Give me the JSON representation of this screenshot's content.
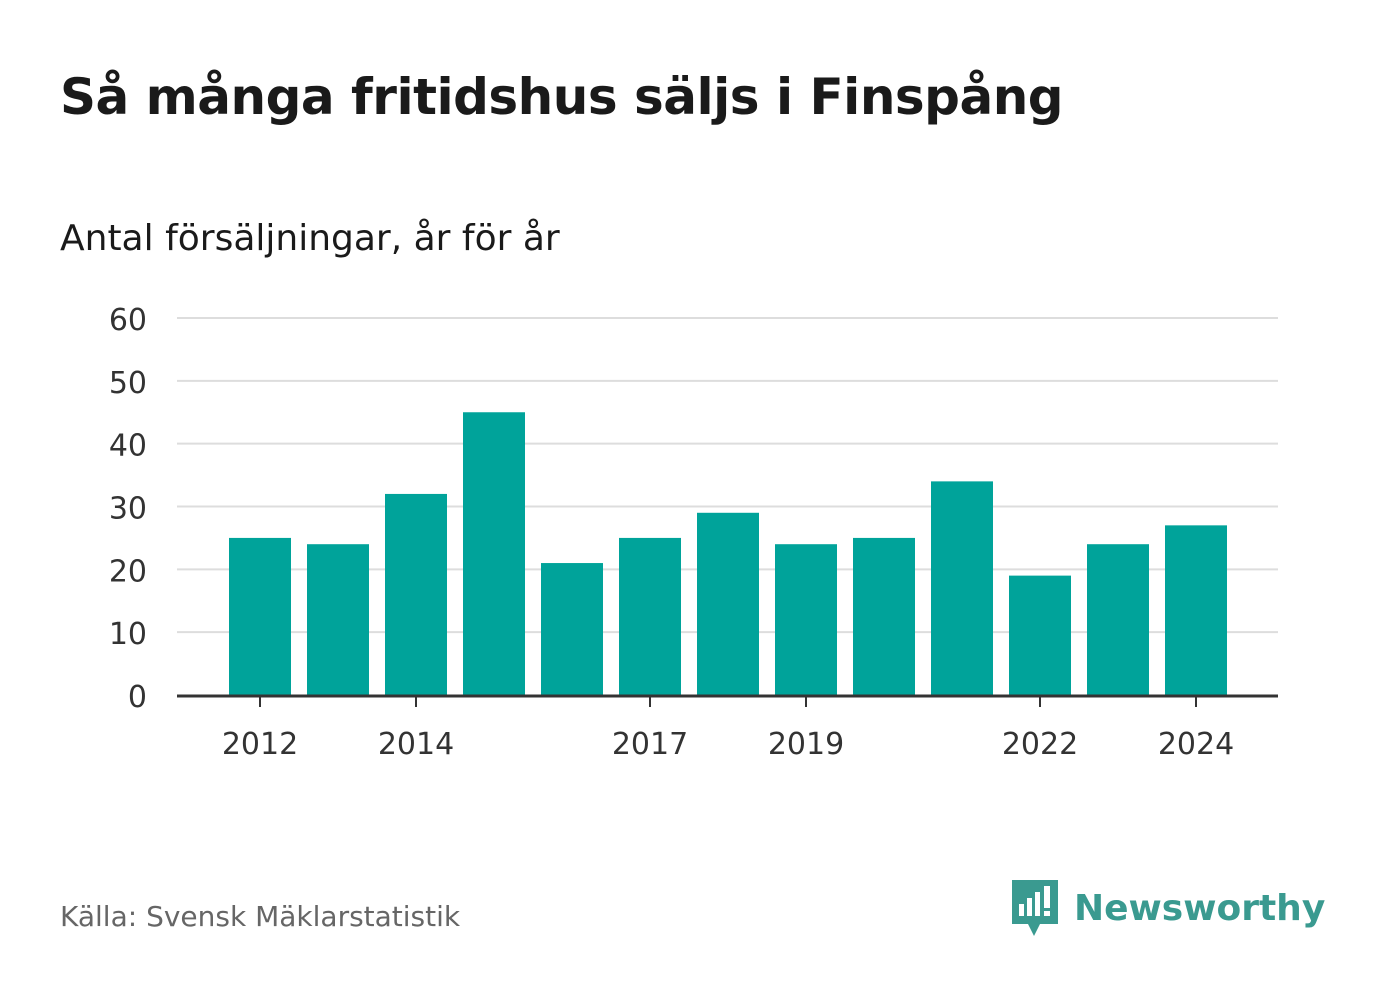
{
  "title": "Så många fritidshus säljs i Finspång",
  "subtitle": "Antal försäljningar, år för år",
  "source": "Källa: Svensk Mäklarstatistik",
  "brand": {
    "name": "Newsworthy",
    "icon": "newsworthy-logo-icon",
    "color": "#3a9a90"
  },
  "chart_data": {
    "type": "bar",
    "categories": [
      "2012",
      "2013",
      "2014",
      "2015",
      "2016",
      "2017",
      "2018",
      "2019",
      "2020",
      "2021",
      "2022",
      "2023",
      "2024"
    ],
    "values": [
      25,
      24,
      32,
      45,
      21,
      25,
      29,
      24,
      25,
      34,
      19,
      24,
      27
    ],
    "x_tick_labels": [
      "2012",
      "2014",
      "2017",
      "2019",
      "2022",
      "2024"
    ],
    "y_ticks": [
      0,
      10,
      20,
      30,
      40,
      50,
      60
    ],
    "ylim": [
      0,
      60
    ],
    "title": "Så många fritidshus säljs i Finspång",
    "subtitle": "Antal försäljningar, år för år",
    "xlabel": "",
    "ylabel": "",
    "grid": true,
    "bar_color": "#00a39a",
    "grid_color": "#dddddd",
    "axis_color": "#333333"
  }
}
